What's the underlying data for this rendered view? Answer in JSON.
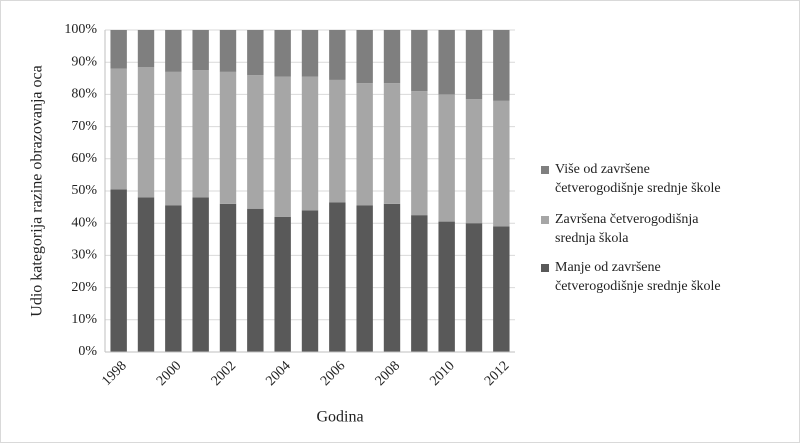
{
  "chart_data": {
    "type": "stacked_bar_100",
    "y_label": "Udio kategorija razine obrazovanja oca",
    "x_label": "Godina",
    "categories": [
      "1998",
      null,
      "2000",
      null,
      "2002",
      null,
      "2004",
      null,
      "2006",
      null,
      "2008",
      null,
      "2010",
      null,
      "2012"
    ],
    "series": [
      {
        "name": "Manje od završene četverogodišnje srednje škole",
        "color": "#595959",
        "values": [
          50.5,
          48,
          45.5,
          48,
          46,
          44.5,
          42,
          44,
          46.5,
          45.5,
          46,
          42.5,
          40.5,
          40,
          39
        ]
      },
      {
        "name": "Završena četverogodišnja srednja škola",
        "color": "#a6a6a6",
        "values": [
          37.5,
          40.5,
          41.5,
          39.5,
          41,
          41.5,
          43.5,
          41.5,
          38,
          38,
          37.5,
          38.5,
          39.5,
          38.5,
          39
        ]
      },
      {
        "name": "Više od završene četverogodišnje srednje škole",
        "color": "#7f7f7f",
        "values": [
          12,
          11.5,
          13,
          12.5,
          13,
          14,
          14.5,
          14.5,
          15.5,
          16.5,
          16.5,
          19,
          20,
          21.5,
          22
        ]
      }
    ],
    "ylim": [
      0,
      100
    ],
    "yticks": [
      {
        "value": 0,
        "label": "0%"
      },
      {
        "value": 10,
        "label": "10%"
      },
      {
        "value": 20,
        "label": "20%"
      },
      {
        "value": 30,
        "label": "30%"
      },
      {
        "value": 40,
        "label": "40%"
      },
      {
        "value": 50,
        "label": "50%"
      },
      {
        "value": 60,
        "label": "60%"
      },
      {
        "value": 70,
        "label": "70%"
      },
      {
        "value": 80,
        "label": "80%"
      },
      {
        "value": 90,
        "label": "90%"
      },
      {
        "value": 100,
        "label": "100%"
      }
    ],
    "grid": true,
    "legend": "right"
  }
}
